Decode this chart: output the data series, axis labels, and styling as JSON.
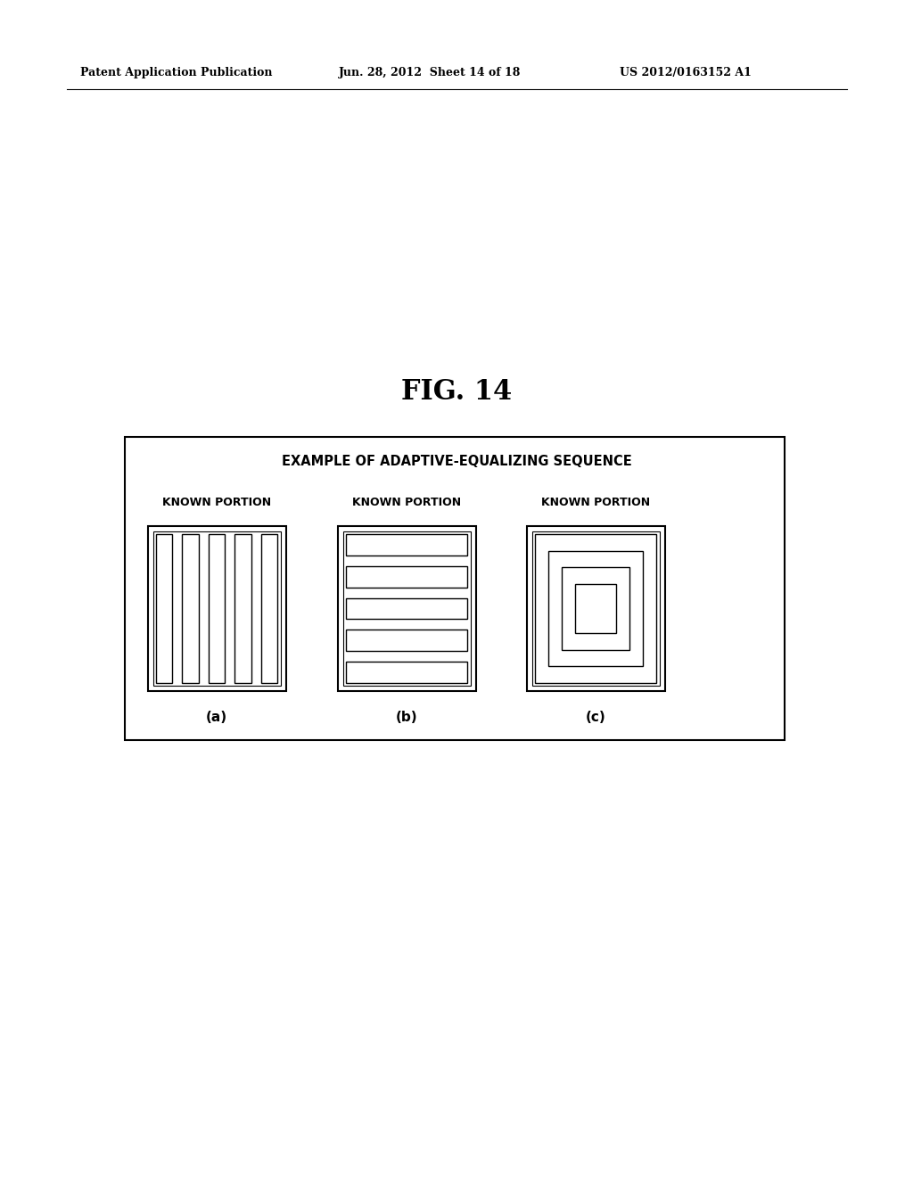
{
  "bg_color": "#ffffff",
  "header_text": "Patent Application Publication",
  "header_date": "Jun. 28, 2012  Sheet 14 of 18",
  "header_patent": "US 2012/0163152 A1",
  "fig_label": "FIG. 14",
  "box_title": "EXAMPLE OF ADAPTIVE-EQUALIZING SEQUENCE",
  "known_portion": "KNOWN PORTION",
  "label_a": "(a)",
  "label_b": "(b)",
  "label_c": "(c)"
}
